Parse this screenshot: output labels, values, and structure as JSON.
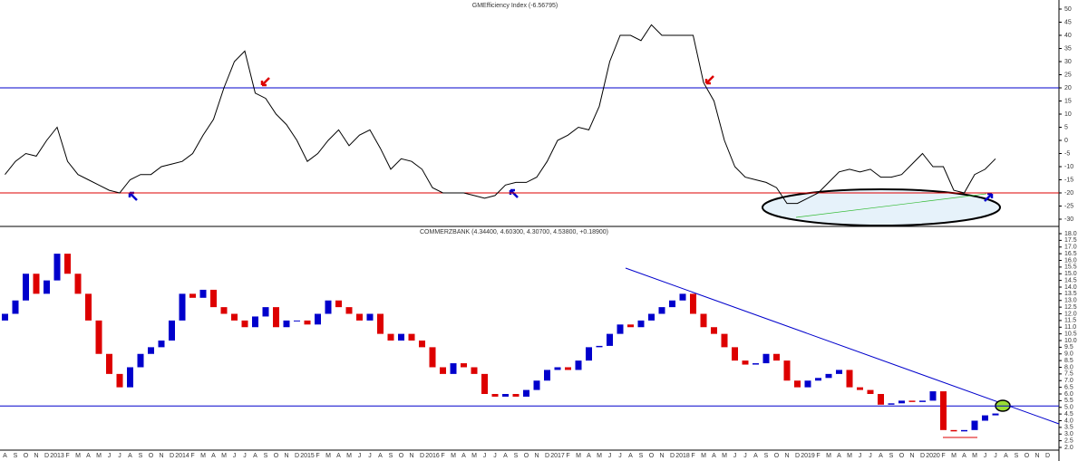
{
  "chart_data": [
    {
      "type": "line",
      "title": "GMEfficiency Index (-6.56795)",
      "color": "#000000",
      "values": [
        -13,
        -8,
        -5,
        -6,
        0,
        5,
        -8,
        -13,
        -15,
        -17,
        -19,
        -20,
        -15,
        -13,
        -13,
        -10,
        -9,
        -8,
        -5,
        2,
        8,
        20,
        30,
        34,
        18,
        16,
        10,
        6,
        0,
        -8,
        -5,
        0,
        4,
        -2,
        2,
        4,
        -3,
        -11,
        -7,
        -8,
        -11,
        -18,
        -20,
        -20,
        -20,
        -21,
        -22,
        -21,
        -17,
        -16,
        -16,
        -14,
        -8,
        0,
        2,
        5,
        4,
        13,
        30,
        40,
        40,
        38,
        44,
        40,
        40,
        40,
        40,
        22,
        15,
        0,
        -10,
        -14,
        -15,
        -16,
        -18,
        -24,
        -24,
        -22,
        -20,
        -16,
        -12,
        -11,
        -12,
        -11,
        -14,
        -14,
        -13,
        -9,
        -5,
        -10,
        -10,
        -19,
        -20,
        -13,
        -11,
        -7,
        null,
        null,
        null,
        null,
        null
      ],
      "ylim": [
        -30,
        50
      ],
      "yticks": [
        -30,
        -25,
        -20,
        -15,
        -10,
        -5,
        0,
        5,
        10,
        15,
        20,
        25,
        30,
        35,
        40,
        45,
        50
      ],
      "reference_lines": [
        {
          "value": 20,
          "color": "#0000cc"
        },
        {
          "value": -20,
          "color": "#dd0000"
        }
      ]
    },
    {
      "type": "candlestick",
      "title": "COMMERZBANK (4.34400, 4.60300, 4.30700, 4.53800, +0.18900)",
      "categories": [
        "A",
        "S",
        "O",
        "N",
        "D",
        "2013",
        "F",
        "M",
        "A",
        "M",
        "J",
        "J",
        "A",
        "S",
        "O",
        "N",
        "D",
        "2014",
        "F",
        "M",
        "A",
        "M",
        "J",
        "J",
        "A",
        "S",
        "O",
        "N",
        "D",
        "2015",
        "F",
        "M",
        "A",
        "M",
        "J",
        "J",
        "A",
        "S",
        "O",
        "N",
        "D",
        "2016",
        "F",
        "M",
        "A",
        "M",
        "J",
        "J",
        "A",
        "S",
        "O",
        "N",
        "D",
        "2017",
        "F",
        "M",
        "A",
        "M",
        "J",
        "J",
        "A",
        "S",
        "O",
        "N",
        "D",
        "2018",
        "F",
        "M",
        "A",
        "M",
        "J",
        "J",
        "A",
        "S",
        "O",
        "N",
        "D",
        "2019",
        "F",
        "M",
        "A",
        "M",
        "J",
        "J",
        "A",
        "S",
        "O",
        "N",
        "D",
        "2020",
        "F",
        "M",
        "A",
        "M",
        "J",
        "J",
        "A",
        "S",
        "O",
        "N",
        "D"
      ],
      "open": [
        11.5,
        12.0,
        13.0,
        15.0,
        13.5,
        14.5,
        16.5,
        15.0,
        13.5,
        11.5,
        9.0,
        7.5,
        6.5,
        8.0,
        9.0,
        9.5,
        10.0,
        11.5,
        13.5,
        13.2,
        13.8,
        12.5,
        12.0,
        11.5,
        11.0,
        11.8,
        12.5,
        11.0,
        11.5,
        11.5,
        11.2,
        12.0,
        13.0,
        12.5,
        12.0,
        11.5,
        12.0,
        10.5,
        10.0,
        10.5,
        10.0,
        9.5,
        8.0,
        7.5,
        8.3,
        8.0,
        7.5,
        6.0,
        5.8,
        6.0,
        5.8,
        6.3,
        7.0,
        7.8,
        8.0,
        7.8,
        8.5,
        9.5,
        9.6,
        10.5,
        11.2,
        11.0,
        11.5,
        12.0,
        12.5,
        13.0,
        13.5,
        12.0,
        11.0,
        10.5,
        9.5,
        8.5,
        8.2,
        8.3,
        9.0,
        8.5,
        7.0,
        6.5,
        7.0,
        7.2,
        7.5,
        7.8,
        6.5,
        6.3,
        6.0,
        5.2,
        5.3,
        5.5,
        5.4,
        5.5,
        6.2,
        3.3,
        3.2,
        3.3,
        4.0,
        4.4,
        null,
        null,
        null,
        null,
        null
      ],
      "close": [
        12.0,
        13.0,
        15.0,
        13.5,
        14.5,
        16.5,
        15.0,
        13.5,
        11.5,
        9.0,
        7.5,
        6.5,
        8.0,
        9.0,
        9.5,
        10.0,
        11.5,
        13.5,
        13.2,
        13.8,
        12.5,
        12.0,
        11.5,
        11.0,
        11.8,
        12.5,
        11.0,
        11.5,
        11.5,
        11.2,
        12.0,
        13.0,
        12.5,
        12.0,
        11.5,
        12.0,
        10.5,
        10.0,
        10.5,
        10.0,
        9.5,
        8.0,
        7.5,
        8.3,
        8.0,
        7.5,
        6.0,
        5.8,
        6.0,
        5.8,
        6.3,
        7.0,
        7.8,
        8.0,
        7.8,
        8.5,
        9.5,
        9.6,
        10.5,
        11.2,
        11.0,
        11.5,
        12.0,
        12.5,
        13.0,
        13.5,
        12.0,
        11.0,
        10.5,
        9.5,
        8.5,
        8.2,
        8.3,
        9.0,
        8.5,
        7.0,
        6.5,
        7.0,
        7.2,
        7.5,
        7.8,
        6.5,
        6.3,
        6.0,
        5.2,
        5.3,
        5.5,
        5.4,
        5.5,
        6.2,
        3.3,
        3.2,
        3.3,
        4.0,
        4.4,
        4.538,
        null,
        null,
        null,
        null,
        null
      ],
      "up_color": "#0000cc",
      "down_color": "#dd0000",
      "ylim": [
        2,
        18
      ],
      "yticks": [
        {
          "value": 2,
          "label": "2.0"
        },
        2.5,
        {
          "value": 3,
          "label": "3.0"
        },
        3.5,
        {
          "value": 4,
          "label": "4.0"
        },
        4.5,
        {
          "value": 5,
          "label": "5.0"
        },
        5.5,
        {
          "value": 6,
          "label": "6.0"
        },
        6.5,
        {
          "value": 7,
          "label": "7.0"
        },
        7.5,
        {
          "value": 8,
          "label": "8.0"
        },
        8.5,
        {
          "value": 9,
          "label": "9.0"
        },
        9.5,
        {
          "value": 10,
          "label": "10.0"
        },
        10.5,
        {
          "value": 11,
          "label": "11.0"
        },
        11.5,
        {
          "value": 12,
          "label": "12.0"
        },
        12.5,
        {
          "value": 13,
          "label": "13.0"
        },
        13.5,
        {
          "value": 14,
          "label": "14.0"
        },
        14.5,
        {
          "value": 15,
          "label": "15.0"
        },
        15.5,
        {
          "value": 16,
          "label": "16.0"
        },
        16.5,
        {
          "value": 17,
          "label": "17.0"
        },
        17.5,
        {
          "value": 18,
          "label": "18.0"
        }
      ],
      "reference_lines": [
        {
          "value": 5.1,
          "color": "#0000cc"
        }
      ]
    }
  ]
}
